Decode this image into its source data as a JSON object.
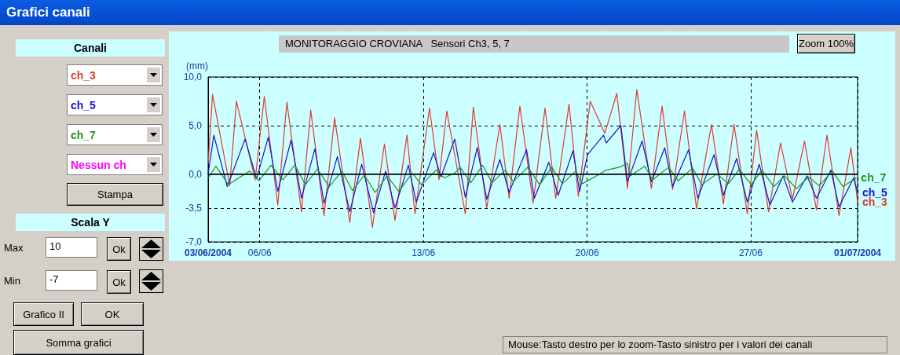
{
  "chart_data": {
    "type": "line",
    "title": "MONITORAGGIO CROVIANA   Sensori Ch3, 5, 7",
    "ylabel": "(mm)",
    "annotations": [
      "Grafici canali",
      "Canali",
      "Nessun ch",
      "Stampa",
      "Scala Y",
      "Max",
      "10",
      "Min",
      "-7",
      "Ok",
      "Ok",
      "Grafico II",
      "OK",
      "Somma grafici",
      "Zoom 100%",
      "Mouse:Tasto destro per lo zoom-Tasto sinistro per i valori dei canali"
    ],
    "xlim": [
      "2004-06-03T19:00",
      "2004-07-01T13:40"
    ],
    "xticks": [
      {
        "value": "2004-06-03T19:00",
        "label": "03/06/2004"
      },
      {
        "value": "2004-06-06",
        "label": "06/06"
      },
      {
        "value": "2004-06-13",
        "label": "13/06"
      },
      {
        "value": "2004-06-20",
        "label": "20/06"
      },
      {
        "value": "2004-06-27",
        "label": "27/06"
      },
      {
        "value": "2004-07-01T13:40",
        "label": "01/07/2004"
      }
    ],
    "ylim": [
      -7,
      10
    ],
    "yticks": [
      {
        "value": -7,
        "label": "-7,0"
      },
      {
        "value": -3.5,
        "label": "-3,5"
      },
      {
        "value": 0,
        "label": "0,0"
      },
      {
        "value": 5,
        "label": "5,0"
      },
      {
        "value": 10,
        "label": "10,0"
      }
    ],
    "grid": true,
    "legend": false,
    "line_style": "solid",
    "ref_lines": [
      {
        "axis": "y",
        "value": 0,
        "color": "#000000",
        "line_style": "solid"
      }
    ],
    "series": [
      {
        "name": "ch_3",
        "color": "#e0392e",
        "x": [
          "2004-06-03T19:00",
          "2004-06-03T23:30",
          "2004-06-04T17:10",
          "2004-06-05T00:00",
          "2004-06-05T19:20",
          "2004-06-06T04:40",
          "2004-06-06T18:30",
          "2004-06-07T03:50",
          "2004-06-07T18:50",
          "2004-06-08T04:20",
          "2004-06-08T18:00",
          "2004-06-09T04:50",
          "2004-06-09T20:25",
          "2004-06-10T07:25",
          "2004-06-10T19:40",
          "2004-06-11T08:00",
          "2004-06-11T18:45",
          "2004-06-12T07:05",
          "2004-06-12T15:20",
          "2004-06-13T06:15",
          "2004-06-13T16:00",
          "2004-06-14T00:00",
          "2004-06-14T19:00",
          "2004-06-15T03:15",
          "2004-06-15T17:00",
          "2004-06-16T06:30",
          "2004-06-16T16:00",
          "2004-06-17T03:00",
          "2004-06-17T16:35",
          "2004-06-18T04:50",
          "2004-06-18T15:50",
          "2004-06-19T05:30",
          "2004-06-19T15:00",
          "2004-06-20T03:15",
          "2004-06-20T18:15",
          "2004-06-21T06:30",
          "2004-06-21T17:30",
          "2004-06-22T03:00",
          "2004-06-22T18:00",
          "2004-06-23T05:00",
          "2004-06-23T15:50",
          "2004-06-24T04:00",
          "2004-06-24T16:20",
          "2004-06-25T07:40",
          "2004-06-25T19:55",
          "2004-06-26T06:50",
          "2004-06-26T20:25",
          "2004-06-27T06:00",
          "2004-06-27T18:15",
          "2004-06-28T06:35",
          "2004-06-28T18:50",
          "2004-06-29T07:10",
          "2004-06-29T19:25",
          "2004-06-30T06:15",
          "2004-06-30T18:35",
          "2004-07-01T06:50",
          "2004-07-01T13:40"
        ],
        "values": [
          1.0,
          8.2,
          -1.2,
          7.5,
          -0.6,
          8.0,
          -3.2,
          7.4,
          -3.9,
          6.6,
          -4.3,
          5.8,
          -5.0,
          3.7,
          -5.5,
          3.1,
          -4.8,
          4.0,
          -4.1,
          6.8,
          -0.6,
          6.5,
          -4.1,
          6.9,
          -3.5,
          5.1,
          -2.5,
          7.0,
          -3.0,
          6.8,
          -2.5,
          7.2,
          -2.3,
          7.5,
          4.2,
          8.3,
          -1.5,
          8.7,
          -1.5,
          7.0,
          -1.6,
          6.5,
          -3.6,
          5.1,
          -3.1,
          5.1,
          -4.1,
          4.5,
          -3.9,
          3.2,
          -2.6,
          3.4,
          -3.7,
          4.0,
          -4.3,
          2.7,
          -2.9
        ]
      },
      {
        "name": "ch_5",
        "color": "#1414c8",
        "x": [
          "2004-06-03T19:00",
          "2004-06-04T00:50",
          "2004-06-04T14:40",
          "2004-06-05T09:00",
          "2004-06-05T20:40",
          "2004-06-06T08:45",
          "2004-06-06T18:30",
          "2004-06-07T08:10",
          "2004-06-07T18:50",
          "2004-06-08T08:40",
          "2004-06-08T18:00",
          "2004-06-09T07:40",
          "2004-06-09T20:25",
          "2004-06-10T08:40",
          "2004-06-10T20:50",
          "2004-06-11T09:10",
          "2004-06-11T18:45",
          "2004-06-12T08:30",
          "2004-06-12T16:40",
          "2004-06-13T10:25",
          "2004-06-13T18:00",
          "2004-06-14T08:10",
          "2004-06-14T19:00",
          "2004-06-15T07:15",
          "2004-06-15T17:00",
          "2004-06-16T06:30",
          "2004-06-16T16:00",
          "2004-06-17T09:50",
          "2004-06-17T17:50",
          "2004-06-18T08:40",
          "2004-06-18T18:20",
          "2004-06-19T09:30",
          "2004-06-19T16:20",
          "2004-06-20T00:30",
          "2004-06-20T16:55",
          "2004-06-20T19:40",
          "2004-06-21T10:40",
          "2004-06-21T17:30",
          "2004-06-22T08:30",
          "2004-06-22T18:00",
          "2004-06-23T07:40",
          "2004-06-23T15:50",
          "2004-06-24T08:10",
          "2004-06-24T17:40",
          "2004-06-25T10:20",
          "2004-06-25T19:55",
          "2004-06-26T09:30",
          "2004-06-26T20:25",
          "2004-06-27T08:45",
          "2004-06-27T19:40",
          "2004-06-28T09:15",
          "2004-06-28T18:50",
          "2004-06-29T09:50",
          "2004-06-29T19:25",
          "2004-06-30T10:20",
          "2004-06-30T18:35",
          "2004-07-01T09:35",
          "2004-07-01T13:40"
        ],
        "values": [
          0.0,
          4.0,
          -1.3,
          3.6,
          -0.5,
          3.8,
          -1.8,
          3.5,
          -2.5,
          2.6,
          -3.0,
          1.8,
          -3.9,
          1.0,
          -4.0,
          0.3,
          -3.5,
          0.9,
          -2.9,
          2.2,
          -0.3,
          3.6,
          -2.4,
          2.7,
          -2.6,
          1.5,
          -1.9,
          2.5,
          -2.5,
          1.2,
          -2.2,
          2.4,
          -1.8,
          2.0,
          4.0,
          3.2,
          5.0,
          -0.8,
          3.4,
          -0.8,
          2.7,
          -1.3,
          2.5,
          -2.5,
          2.0,
          -2.2,
          1.6,
          -2.9,
          1.0,
          -3.2,
          -0.2,
          -2.9,
          -0.2,
          -2.5,
          0.4,
          -3.4,
          -0.4,
          -1.9
        ]
      },
      {
        "name": "ch_7",
        "color": "#1c961c",
        "x": [
          "2004-06-03T19:00",
          "2004-06-04T03:00",
          "2004-06-04T15:50",
          "2004-06-05T13:40",
          "2004-06-05T23:15",
          "2004-06-06T11:30",
          "2004-06-06T23:45",
          "2004-06-07T12:00",
          "2004-06-07T22:55",
          "2004-06-08T11:10",
          "2004-06-08T23:25",
          "2004-06-09T12:15",
          "2004-06-09T23:10",
          "2004-06-10T11:25",
          "2004-06-10T22:25",
          "2004-06-11T10:40",
          "2004-06-11T22:55",
          "2004-06-12T12:30",
          "2004-06-12T22:05",
          "2004-06-13T13:05",
          "2004-06-13T21:15",
          "2004-06-14T08:10",
          "2004-06-14T13:40",
          "2004-06-15T00:35",
          "2004-06-15T12:50",
          "2004-06-15T22:25",
          "2004-06-16T12:00",
          "2004-06-16T20:10",
          "2004-06-17T11:10",
          "2004-06-17T23:25",
          "2004-06-18T11:40",
          "2004-06-18T22:40",
          "2004-06-19T12:15",
          "2004-06-19T19:05",
          "2004-06-20T11:30",
          "2004-06-20T19:40",
          "2004-06-21T09:15",
          "2004-06-21T17:30",
          "2004-06-21T20:10",
          "2004-06-22T11:10",
          "2004-06-22T19:20",
          "2004-06-23T11:45",
          "2004-06-23T21:20",
          "2004-06-24T12:20",
          "2004-06-24T21:50",
          "2004-06-25T13:05",
          "2004-06-26T01:20",
          "2004-06-26T12:15",
          "2004-06-27T00:30",
          "2004-06-27T11:30",
          "2004-06-27T23:45",
          "2004-06-28T10:40",
          "2004-06-28T23:00",
          "2004-06-29T11:15",
          "2004-06-29T22:10",
          "2004-06-30T11:50",
          "2004-06-30T22:40",
          "2004-07-01T12:20"
        ],
        "values": [
          -0.4,
          0.8,
          -1.1,
          0.3,
          -0.7,
          0.9,
          -0.6,
          0.9,
          -1.1,
          0.5,
          -1.3,
          0.3,
          -1.7,
          -0.1,
          -1.9,
          -0.2,
          -1.8,
          0.1,
          -1.1,
          0.4,
          -0.4,
          0.1,
          0.7,
          -0.9,
          0.9,
          -0.9,
          0.4,
          -0.8,
          0.7,
          -1.1,
          0.7,
          -1.0,
          0.3,
          -1.0,
          -0.1,
          0.4,
          0.7,
          1.1,
          -0.2,
          0.8,
          -0.6,
          0.7,
          -0.7,
          0.6,
          -1.1,
          0.0,
          -1.0,
          0.5,
          -1.1,
          0.4,
          -1.3,
          -0.2,
          -1.5,
          -0.3,
          -1.2,
          0.3,
          -1.3,
          -0.4
        ]
      }
    ]
  }
}
